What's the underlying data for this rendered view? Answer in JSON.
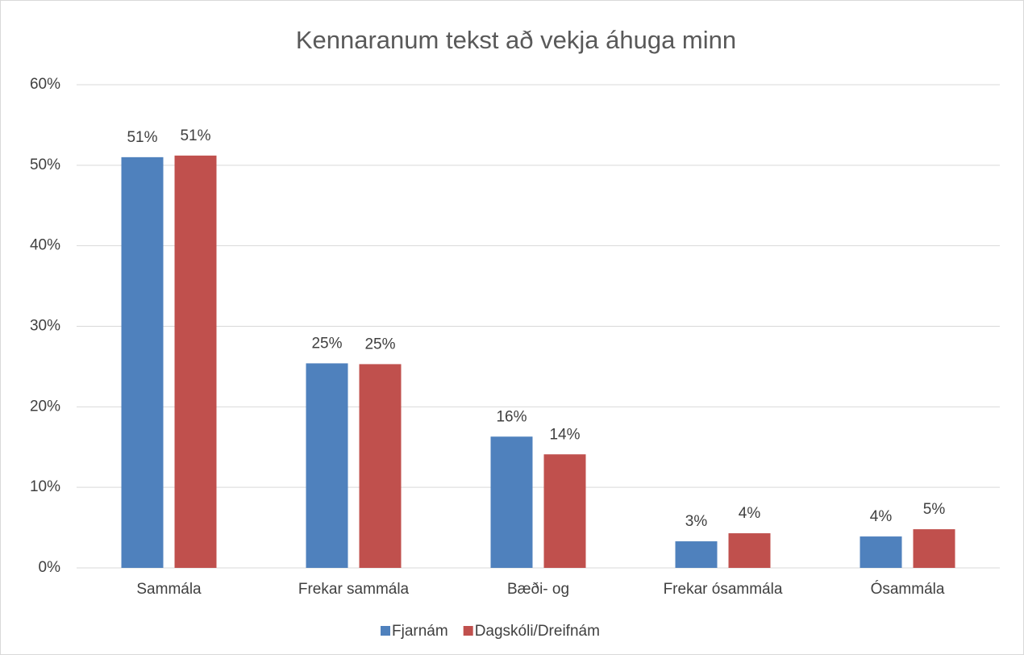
{
  "chart_data": {
    "type": "bar",
    "title": "Kennaranum tekst að vekja áhuga minn",
    "categories": [
      "Sammála",
      "Frekar sammála",
      "Bæði- og",
      "Frekar ósammála",
      "Ósammála"
    ],
    "series": [
      {
        "name": "Fjarnám",
        "color": "#4f81bd",
        "values": [
          51,
          25.4,
          16.3,
          3.3,
          3.9
        ],
        "value_labels": [
          "51%",
          "25%",
          "16%",
          "3%",
          "4%"
        ]
      },
      {
        "name": "Dagskóli/Dreifnám",
        "color": "#c0504d",
        "values": [
          51.2,
          25.3,
          14.1,
          4.3,
          4.8
        ],
        "value_labels": [
          "51%",
          "25%",
          "14%",
          "4%",
          "5%"
        ]
      }
    ],
    "ylim": [
      0,
      60
    ],
    "yticks": [
      {
        "value": 0,
        "label": "0%"
      },
      {
        "value": 10,
        "label": "10%"
      },
      {
        "value": 20,
        "label": "20%"
      },
      {
        "value": 30,
        "label": "30%"
      },
      {
        "value": 40,
        "label": "40%"
      },
      {
        "value": 50,
        "label": "50%"
      },
      {
        "value": 60,
        "label": "60%"
      }
    ],
    "grid": true,
    "legend": "bottom"
  }
}
